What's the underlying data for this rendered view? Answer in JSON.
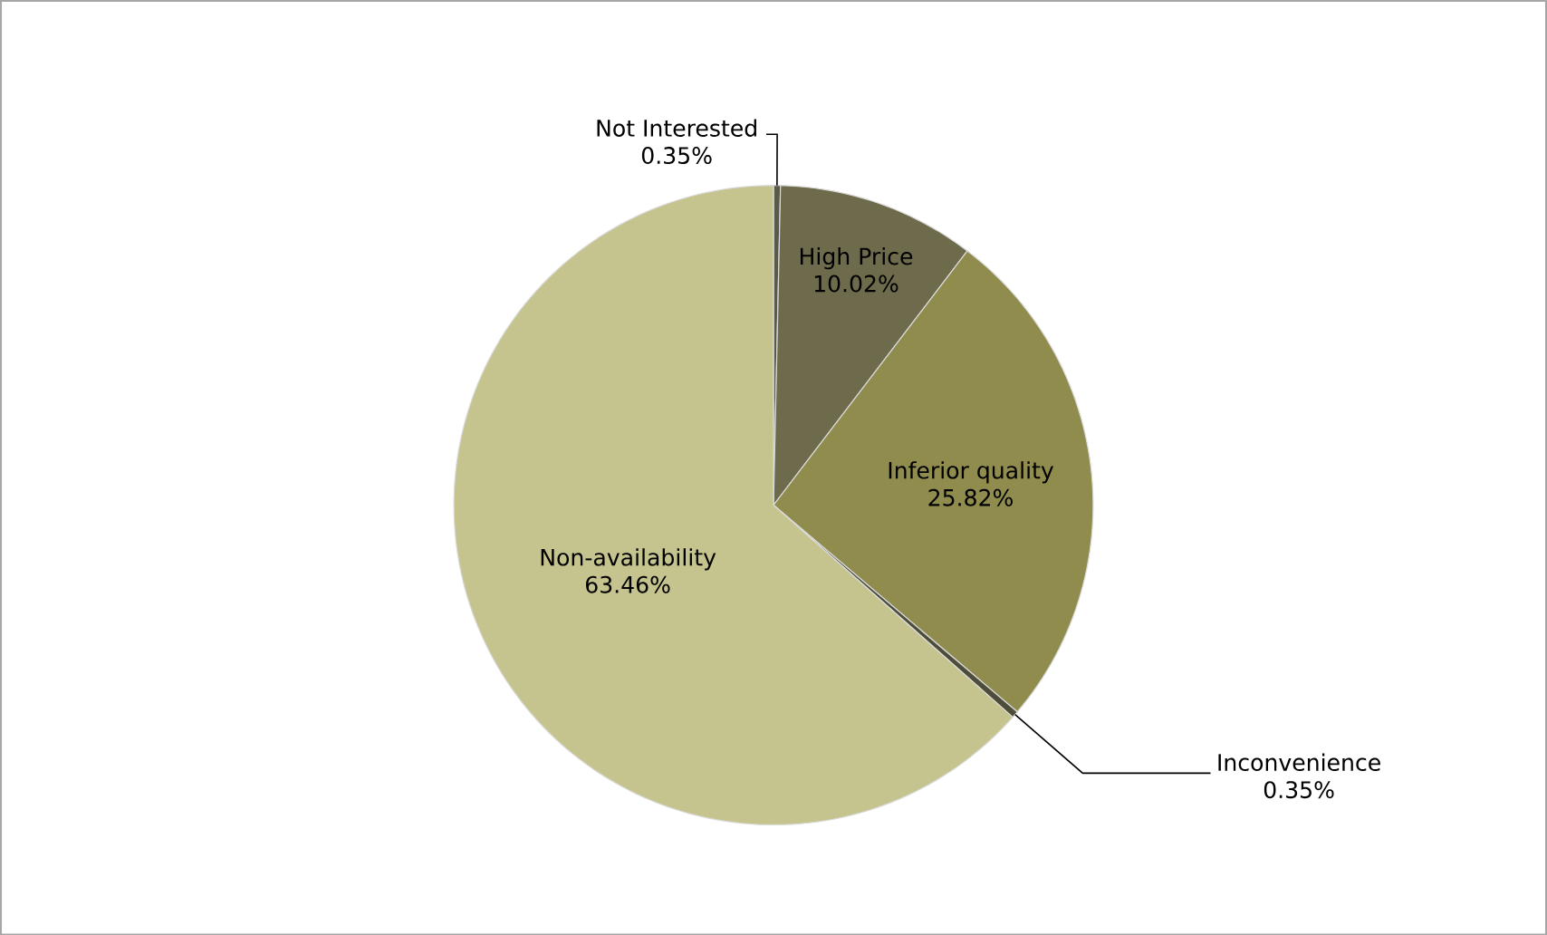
{
  "chart_data": {
    "type": "pie",
    "categories": [
      "Not Interested",
      "High Price",
      "Inferior quality",
      "Inconvenience",
      "Non-availability"
    ],
    "values": [
      0.35,
      10.02,
      25.82,
      0.35,
      63.46
    ],
    "value_labels": [
      "0.35%",
      "10.02%",
      "25.82%",
      "0.35%",
      "63.46%"
    ],
    "colors": [
      "#5a5a48",
      "#6e6b4c",
      "#8f8c4e",
      "#4d4d3a",
      "#c6c48e"
    ]
  }
}
